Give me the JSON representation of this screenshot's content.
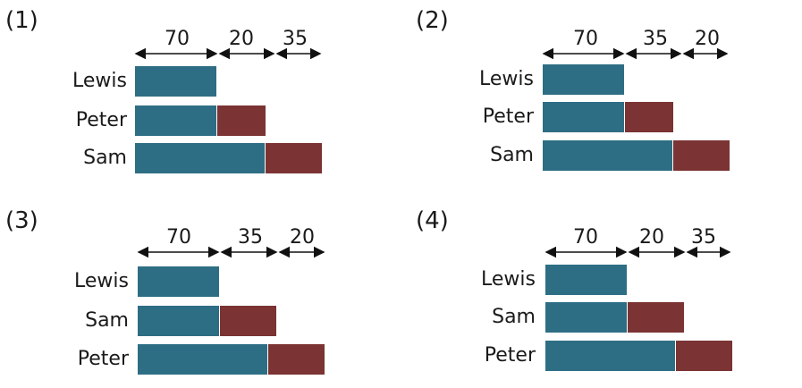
{
  "colors": {
    "teal": "#2e6e84",
    "red": "#7b3333",
    "arrow": "#111111"
  },
  "panels": [
    {
      "label": "(1)",
      "segments": [
        "70",
        "20",
        "35"
      ],
      "rows": [
        "Lewis",
        "Peter",
        "Sam"
      ]
    },
    {
      "label": "(2)",
      "segments": [
        "70",
        "35",
        "20"
      ],
      "rows": [
        "Lewis",
        "Peter",
        "Sam"
      ]
    },
    {
      "label": "(3)",
      "segments": [
        "70",
        "35",
        "20"
      ],
      "rows": [
        "Lewis",
        "Sam",
        "Peter"
      ]
    },
    {
      "label": "(4)",
      "segments": [
        "70",
        "20",
        "35"
      ],
      "rows": [
        "Lewis",
        "Sam",
        "Peter"
      ]
    }
  ]
}
